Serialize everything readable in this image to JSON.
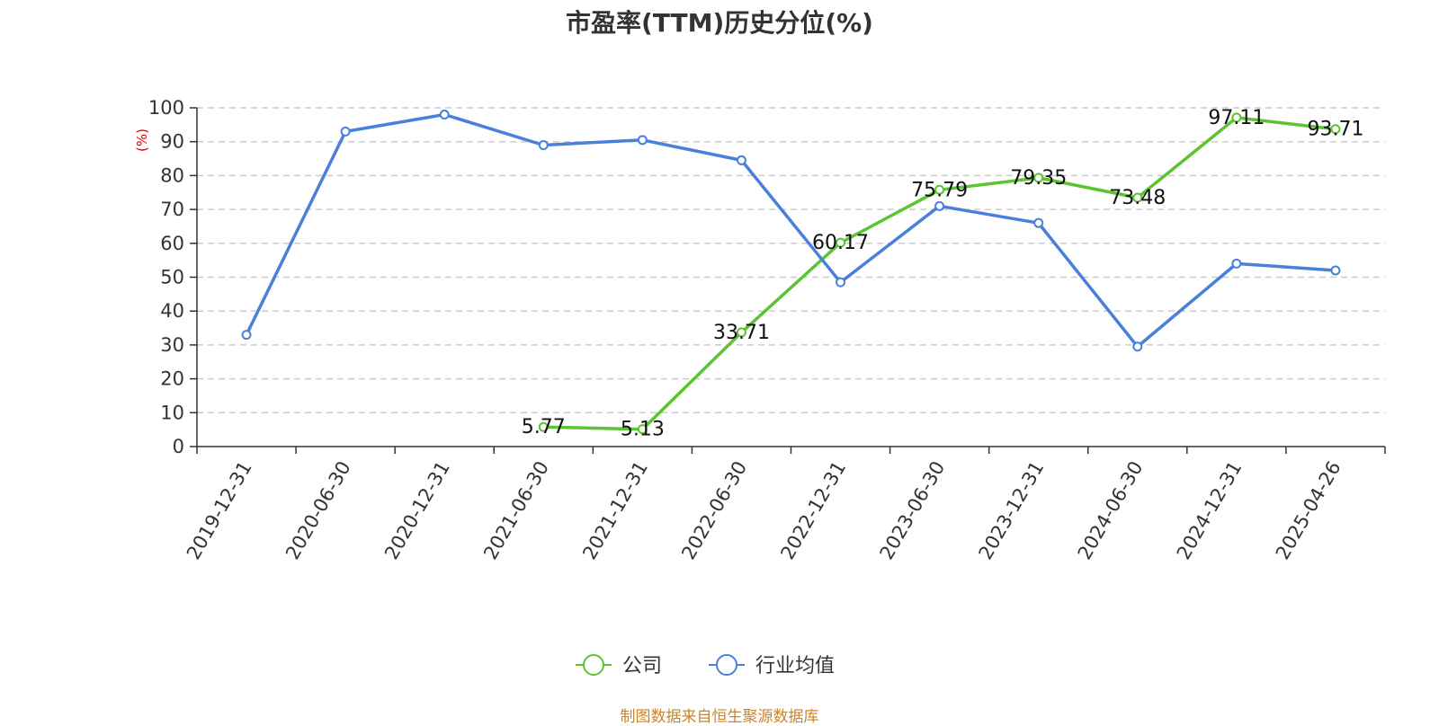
{
  "chart_data": {
    "type": "line",
    "title": "市盈率(TTM)历史分位(%)",
    "ylabel": "(%)",
    "xlabel": "",
    "ylim": [
      0,
      100
    ],
    "yticks": [
      0,
      10,
      20,
      30,
      40,
      50,
      60,
      70,
      80,
      90,
      100
    ],
    "categories": [
      "2019-12-31",
      "2020-06-30",
      "2020-12-31",
      "2021-06-30",
      "2021-12-31",
      "2022-06-30",
      "2022-12-31",
      "2023-06-30",
      "2023-12-31",
      "2024-06-30",
      "2024-12-31",
      "2025-04-26"
    ],
    "grid": true,
    "legend_position": "bottom",
    "series": [
      {
        "name": "公司",
        "color": "#5ac431",
        "values": [
          null,
          null,
          null,
          5.77,
          5.13,
          33.71,
          60.17,
          75.79,
          79.35,
          73.48,
          97.11,
          93.71
        ],
        "labels": [
          "",
          "",
          "",
          "5.77",
          "5.13",
          "33.71",
          "60.17",
          "75.79",
          "79.35",
          "73.48",
          "97.11",
          "93.71"
        ]
      },
      {
        "name": "行业均值",
        "color": "#4a7fdc",
        "values": [
          33,
          93,
          98,
          89,
          90.5,
          84.5,
          48.5,
          71,
          66,
          29.5,
          54,
          52
        ],
        "labels": []
      }
    ]
  },
  "source_note": "制图数据来自恒生聚源数据库"
}
